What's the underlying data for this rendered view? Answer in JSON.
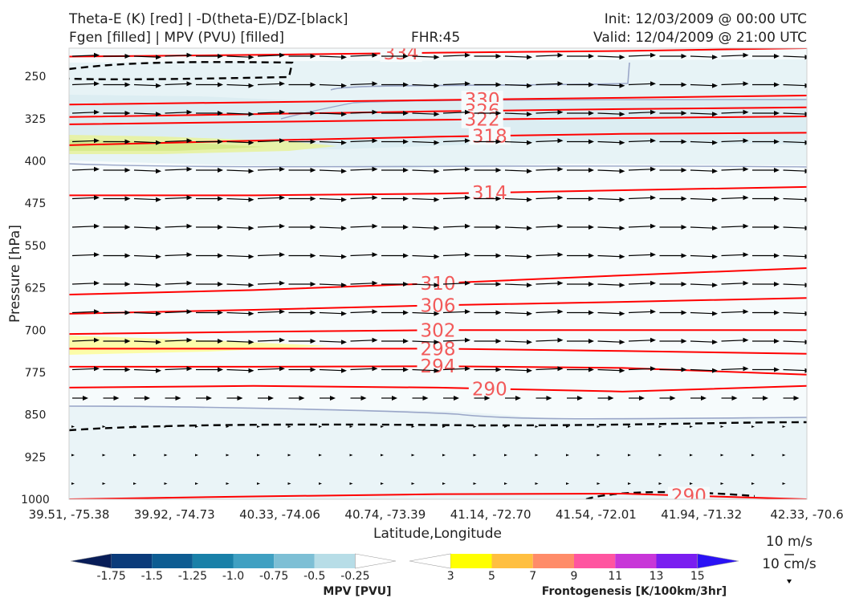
{
  "header": {
    "title_line1": "Theta-E (K) [red] | -D(theta-E)/DZ-[black]",
    "title_line2": "Fgen [filled] | MPV (PVU) [filled]",
    "fhr": "FHR:45",
    "init": "Init: 12/03/2009 @ 00:00 UTC",
    "valid": "Valid: 12/04/2009 @ 21:00 UTC"
  },
  "chart_data": {
    "type": "cross-section",
    "xlabel": "Latitude,Longitude",
    "ylabel": "Pressure [hPa]",
    "x_ticks": [
      "39.51, -75.38",
      "39.92, -74.73",
      "40.33, -74.06",
      "40.74, -73.39",
      "41.14, -72.70",
      "41.54, -72.01",
      "41.94, -71.32",
      "42.33, -70.6"
    ],
    "y_ticks": [
      250,
      325,
      400,
      475,
      550,
      625,
      700,
      775,
      850,
      925,
      1000
    ],
    "ylim": [
      1000,
      200
    ],
    "y_scale": "linear, inverted",
    "theta_e_contours": [
      {
        "label": "334",
        "pressure": [
          215,
          212,
          208,
          205,
          200
        ]
      },
      {
        "label": "330",
        "pressure": [
          300,
          296,
          292,
          288,
          284
        ]
      },
      {
        "label": "326",
        "pressure": [
          322,
          317,
          312,
          308,
          305
        ]
      },
      {
        "label": "322",
        "pressure": [
          335,
          331,
          327,
          324,
          321
        ]
      },
      {
        "label": "318",
        "pressure": [
          372,
          364,
          357,
          352,
          350
        ]
      },
      {
        "label": "314",
        "pressure": [
          461,
          461,
          458,
          452,
          446
        ]
      },
      {
        "label": "310",
        "pressure": [
          637,
          629,
          617,
          603,
          590
        ]
      },
      {
        "label": "306",
        "pressure": [
          671,
          664,
          656,
          650,
          643
        ]
      },
      {
        "label": "302",
        "pressure": [
          707,
          703,
          700,
          700,
          700
        ]
      },
      {
        "label": "298",
        "pressure": [
          733,
          733,
          733,
          737,
          742
        ]
      },
      {
        "label": "294",
        "pressure": [
          765,
          765,
          764,
          767,
          779
        ]
      },
      {
        "label": "290",
        "pressure": [
          802,
          799,
          802,
          809,
          799
        ]
      },
      {
        "label": "290",
        "pressure": [
          1000,
          995,
          991,
          990,
          1000
        ]
      }
    ],
    "theta_e_x_positions": [
      0,
      0.25,
      0.5,
      0.75,
      1
    ],
    "mpv_colorbar": {
      "label": "MPV [PVU]",
      "ticks": [
        "-1.75",
        "-1.5",
        "-1.25",
        "-1.0",
        "-0.75",
        "-0.5",
        "-0.25"
      ],
      "colors": [
        "#081d58",
        "#0b3b7a",
        "#0d5c92",
        "#1980a8",
        "#3fa0c2",
        "#7dbfd5",
        "#b7dde7",
        "#ffffff"
      ]
    },
    "fgen_colorbar": {
      "label": "Frontogenesis [K/100km/3hr]",
      "ticks": [
        "3",
        "5",
        "7",
        "9",
        "11",
        "13",
        "15"
      ],
      "colors": [
        "#ffffff",
        "#ffff00",
        "#ffbf40",
        "#ff8c69",
        "#ff55a0",
        "#c836d8",
        "#7a1ef0",
        "#2a12f5"
      ]
    },
    "vector_key": {
      "label1": "10 m/s",
      "label2": "10 cm/s"
    },
    "grid": false
  },
  "colors": {
    "theta_e": "#ff0000",
    "label_text": "#f25a5a",
    "stability_dashed": "#000000",
    "mpv_edge": "#9aa6c8"
  }
}
